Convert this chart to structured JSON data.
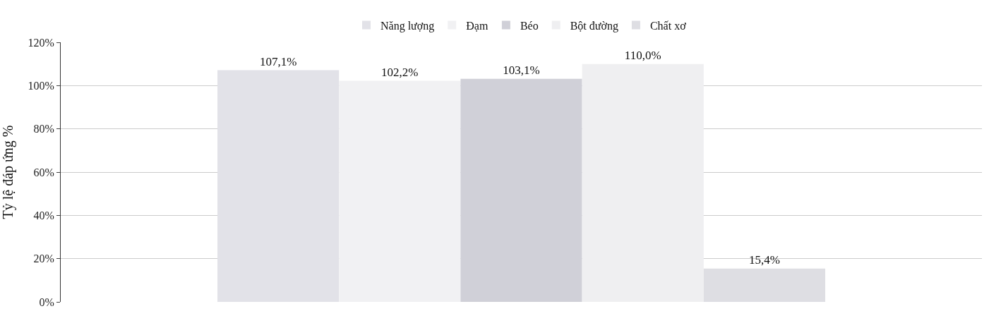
{
  "chart_data": {
    "type": "bar",
    "ylabel": "Tỷ lệ đáp ứng %",
    "categories": [
      null
    ],
    "series": [
      {
        "name": "Năng lượng",
        "color": "#e2e2e8",
        "values": [
          107.1
        ],
        "value_labels": [
          "107,1%"
        ]
      },
      {
        "name": "Đạm",
        "color": "#f1f1f3",
        "values": [
          102.2
        ],
        "value_labels": [
          "102,2%"
        ]
      },
      {
        "name": "Béo",
        "color": "#d0d0d8",
        "values": [
          103.1
        ],
        "value_labels": [
          "103,1%"
        ]
      },
      {
        "name": "Bột đường",
        "color": "#efeff1",
        "values": [
          110.0
        ],
        "value_labels": [
          "110,0%"
        ]
      },
      {
        "name": "Chất xơ",
        "color": "#dedee3",
        "values": [
          15.4
        ],
        "value_labels": [
          "15,4%"
        ]
      }
    ],
    "ylim": [
      0,
      120
    ],
    "yticks": [
      {
        "value": 0,
        "label": "0%"
      },
      {
        "value": 20,
        "label": "20%"
      },
      {
        "value": 40,
        "label": "40%"
      },
      {
        "value": 60,
        "label": "60%"
      },
      {
        "value": 80,
        "label": "80%"
      },
      {
        "value": 100,
        "label": "100%"
      },
      {
        "value": 120,
        "label": "120%"
      }
    ],
    "grid": "y",
    "legend": "top"
  }
}
